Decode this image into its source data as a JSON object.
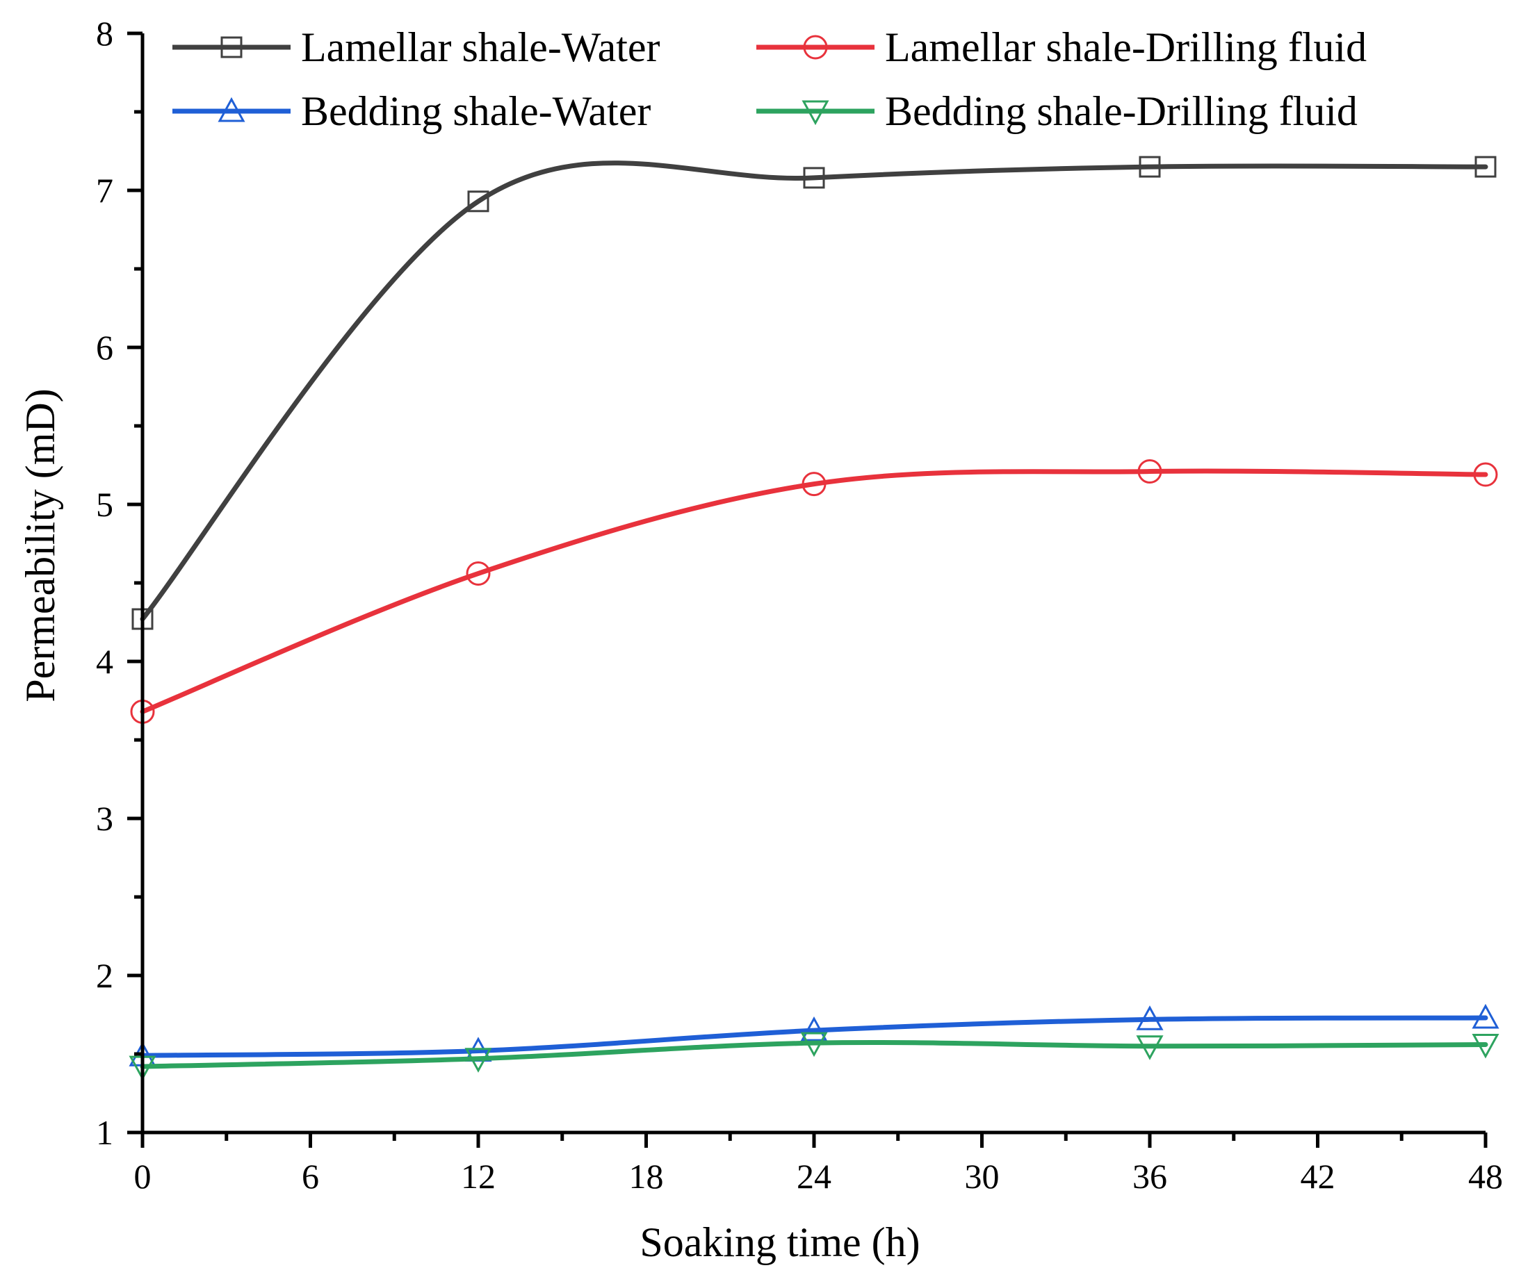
{
  "chart_data": {
    "type": "line",
    "xlabel": "Soaking time (h)",
    "ylabel": "Permeability (mD)",
    "xlim": [
      0,
      48
    ],
    "ylim": [
      1,
      8
    ],
    "xticks": [
      0,
      6,
      12,
      18,
      24,
      30,
      36,
      42,
      48
    ],
    "xtick_labels": [
      "0",
      "6",
      "12",
      "18",
      "24",
      "30",
      "36",
      "42",
      "48"
    ],
    "yticks": [
      1,
      2,
      3,
      4,
      5,
      6,
      7,
      8
    ],
    "ytick_labels": [
      "1",
      "2",
      "3",
      "4",
      "5",
      "6",
      "7",
      "8"
    ],
    "x": [
      0,
      12,
      24,
      36,
      48
    ],
    "legend_position": "top",
    "series": [
      {
        "name": "Lamellar shale-Water",
        "color": "#404040",
        "marker": "square",
        "values": [
          4.27,
          6.93,
          7.08,
          7.15,
          7.15
        ]
      },
      {
        "name": "Lamellar shale-Drilling fluid",
        "color": "#e8323c",
        "marker": "circle",
        "values": [
          3.68,
          4.56,
          5.13,
          5.21,
          5.19
        ]
      },
      {
        "name": "Bedding shale-Water",
        "color": "#1f5fd6",
        "marker": "triangle-up",
        "values": [
          1.49,
          1.52,
          1.65,
          1.72,
          1.73
        ]
      },
      {
        "name": "Bedding shale-Drilling fluid",
        "color": "#2da35f",
        "marker": "triangle-down",
        "values": [
          1.42,
          1.47,
          1.57,
          1.55,
          1.56
        ]
      }
    ]
  }
}
